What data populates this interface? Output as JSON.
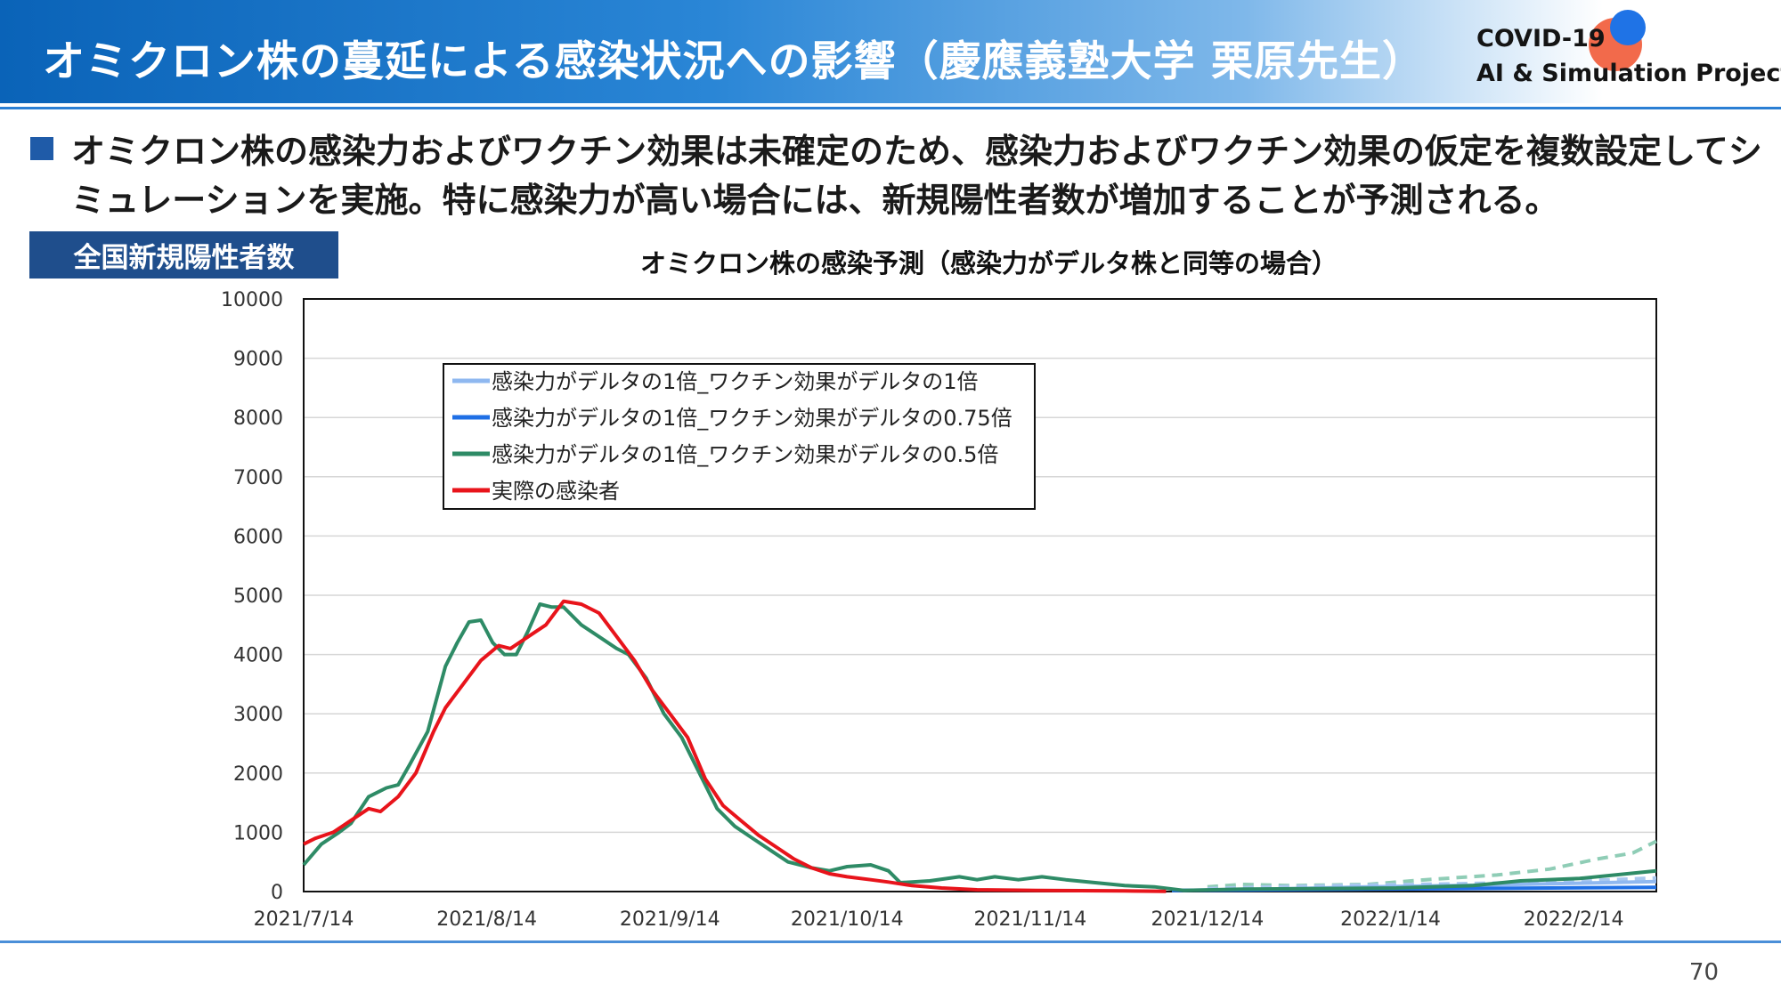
{
  "header": {
    "title": "オミクロン株の蔓延による感染状況への影響（慶應義塾大学 栗原先生）",
    "brand_line1": "COVID-19",
    "brand_line2": "AI & Simulation Project"
  },
  "summary": "オミクロン株の感染力およびワクチン効果は未確定のため、感染力およびワクチン効果の仮定を複数設定してシミュレーションを実施。特に感染力が高い場合には、新規陽性者数が増加することが予測される。",
  "tag_label": "全国新規陽性者数",
  "page_number": "70",
  "chart_data": {
    "type": "line",
    "title": "オミクロン株の感染予測（感染力がデルタ株と同等の場合）",
    "xlabel": "",
    "ylabel": "",
    "ylim": [
      0,
      10000
    ],
    "yticks": [
      0,
      1000,
      2000,
      3000,
      4000,
      5000,
      6000,
      7000,
      8000,
      9000,
      10000
    ],
    "xlim": [
      "2021-07-14",
      "2022-02-28"
    ],
    "xticks": [
      "2021/7/14",
      "2021/8/14",
      "2021/9/14",
      "2021/10/14",
      "2021/11/14",
      "2021/12/14",
      "2022/1/14",
      "2022/2/14"
    ],
    "grid": true,
    "legend_position": "upper-left",
    "series": [
      {
        "name": "感染力がデルタの1倍_ワクチン効果がデルタの1倍",
        "color": "#8fb8f0",
        "points": [
          [
            "2021-12-08",
            20
          ],
          [
            "2021-12-25",
            40
          ],
          [
            "2022-01-10",
            80
          ],
          [
            "2022-01-25",
            100
          ],
          [
            "2022-02-10",
            130
          ],
          [
            "2022-02-28",
            170
          ]
        ]
      },
      {
        "name": "感染力がデルタの1倍_ワクチン効果がデルタの0.75倍",
        "color": "#1f6fe5",
        "points": [
          [
            "2021-12-08",
            20
          ],
          [
            "2021-12-25",
            30
          ],
          [
            "2022-01-10",
            40
          ],
          [
            "2022-01-25",
            50
          ],
          [
            "2022-02-10",
            60
          ],
          [
            "2022-02-28",
            70
          ]
        ]
      },
      {
        "name": "感染力がデルタの1倍_ワクチン効果がデルタの0.5倍",
        "color": "#2e8b66",
        "points": [
          [
            "2021-07-14",
            450
          ],
          [
            "2021-07-17",
            800
          ],
          [
            "2021-07-20",
            1000
          ],
          [
            "2021-07-22",
            1150
          ],
          [
            "2021-07-25",
            1600
          ],
          [
            "2021-07-28",
            1750
          ],
          [
            "2021-07-30",
            1800
          ],
          [
            "2021-08-01",
            2150
          ],
          [
            "2021-08-04",
            2700
          ],
          [
            "2021-08-07",
            3800
          ],
          [
            "2021-08-09",
            4200
          ],
          [
            "2021-08-11",
            4550
          ],
          [
            "2021-08-13",
            4580
          ],
          [
            "2021-08-15",
            4200
          ],
          [
            "2021-08-17",
            4000
          ],
          [
            "2021-08-19",
            4000
          ],
          [
            "2021-08-21",
            4400
          ],
          [
            "2021-08-23",
            4850
          ],
          [
            "2021-08-25",
            4800
          ],
          [
            "2021-08-27",
            4800
          ],
          [
            "2021-08-30",
            4500
          ],
          [
            "2021-09-02",
            4300
          ],
          [
            "2021-09-05",
            4100
          ],
          [
            "2021-09-07",
            4000
          ],
          [
            "2021-09-10",
            3600
          ],
          [
            "2021-09-13",
            3000
          ],
          [
            "2021-09-16",
            2600
          ],
          [
            "2021-09-19",
            2000
          ],
          [
            "2021-09-22",
            1400
          ],
          [
            "2021-09-25",
            1100
          ],
          [
            "2021-09-28",
            900
          ],
          [
            "2021-10-01",
            700
          ],
          [
            "2021-10-04",
            500
          ],
          [
            "2021-10-08",
            400
          ],
          [
            "2021-10-11",
            350
          ],
          [
            "2021-10-14",
            420
          ],
          [
            "2021-10-18",
            450
          ],
          [
            "2021-10-21",
            350
          ],
          [
            "2021-10-23",
            150
          ],
          [
            "2021-10-28",
            180
          ],
          [
            "2021-11-02",
            250
          ],
          [
            "2021-11-05",
            200
          ],
          [
            "2021-11-08",
            250
          ],
          [
            "2021-11-12",
            200
          ],
          [
            "2021-11-16",
            250
          ],
          [
            "2021-11-20",
            200
          ],
          [
            "2021-11-25",
            150
          ],
          [
            "2021-11-30",
            100
          ],
          [
            "2021-12-05",
            80
          ],
          [
            "2021-12-10",
            20
          ],
          [
            "2021-12-20",
            40
          ],
          [
            "2022-01-01",
            50
          ],
          [
            "2022-01-15",
            60
          ],
          [
            "2022-01-28",
            100
          ],
          [
            "2022-02-05",
            180
          ],
          [
            "2022-02-15",
            220
          ],
          [
            "2022-02-28",
            350
          ]
        ]
      },
      {
        "name": "実際の感染者",
        "color": "#e8141b",
        "points": [
          [
            "2021-07-14",
            800
          ],
          [
            "2021-07-16",
            900
          ],
          [
            "2021-07-19",
            1000
          ],
          [
            "2021-07-22",
            1200
          ],
          [
            "2021-07-25",
            1400
          ],
          [
            "2021-07-27",
            1350
          ],
          [
            "2021-07-30",
            1600
          ],
          [
            "2021-08-02",
            2000
          ],
          [
            "2021-08-05",
            2700
          ],
          [
            "2021-08-07",
            3100
          ],
          [
            "2021-08-10",
            3500
          ],
          [
            "2021-08-13",
            3900
          ],
          [
            "2021-08-16",
            4150
          ],
          [
            "2021-08-18",
            4100
          ],
          [
            "2021-08-21",
            4300
          ],
          [
            "2021-08-24",
            4500
          ],
          [
            "2021-08-27",
            4900
          ],
          [
            "2021-08-30",
            4850
          ],
          [
            "2021-09-02",
            4700
          ],
          [
            "2021-09-05",
            4300
          ],
          [
            "2021-09-08",
            3900
          ],
          [
            "2021-09-11",
            3400
          ],
          [
            "2021-09-14",
            3000
          ],
          [
            "2021-09-17",
            2600
          ],
          [
            "2021-09-20",
            1900
          ],
          [
            "2021-09-23",
            1450
          ],
          [
            "2021-09-26",
            1200
          ],
          [
            "2021-09-29",
            950
          ],
          [
            "2021-10-02",
            750
          ],
          [
            "2021-10-05",
            550
          ],
          [
            "2021-10-08",
            400
          ],
          [
            "2021-10-11",
            300
          ],
          [
            "2021-10-14",
            250
          ],
          [
            "2021-10-18",
            200
          ],
          [
            "2021-10-21",
            160
          ],
          [
            "2021-10-25",
            100
          ],
          [
            "2021-10-30",
            60
          ],
          [
            "2021-11-05",
            30
          ],
          [
            "2021-11-15",
            20
          ],
          [
            "2021-11-30",
            10
          ],
          [
            "2021-12-07",
            5
          ]
        ]
      }
    ],
    "projection_series": [
      {
        "color": "#8fcdb6",
        "points": [
          [
            "2021-12-14",
            80
          ],
          [
            "2021-12-20",
            120
          ],
          [
            "2021-12-28",
            100
          ],
          [
            "2022-01-10",
            120
          ],
          [
            "2022-01-20",
            200
          ],
          [
            "2022-02-01",
            280
          ],
          [
            "2022-02-10",
            380
          ],
          [
            "2022-02-18",
            550
          ],
          [
            "2022-02-24",
            650
          ],
          [
            "2022-02-28",
            850
          ]
        ]
      },
      {
        "color": "#a9c8ef",
        "points": [
          [
            "2021-12-14",
            50
          ],
          [
            "2021-12-25",
            80
          ],
          [
            "2022-01-10",
            110
          ],
          [
            "2022-01-25",
            130
          ],
          [
            "2022-02-10",
            160
          ],
          [
            "2022-02-28",
            230
          ]
        ]
      }
    ]
  }
}
